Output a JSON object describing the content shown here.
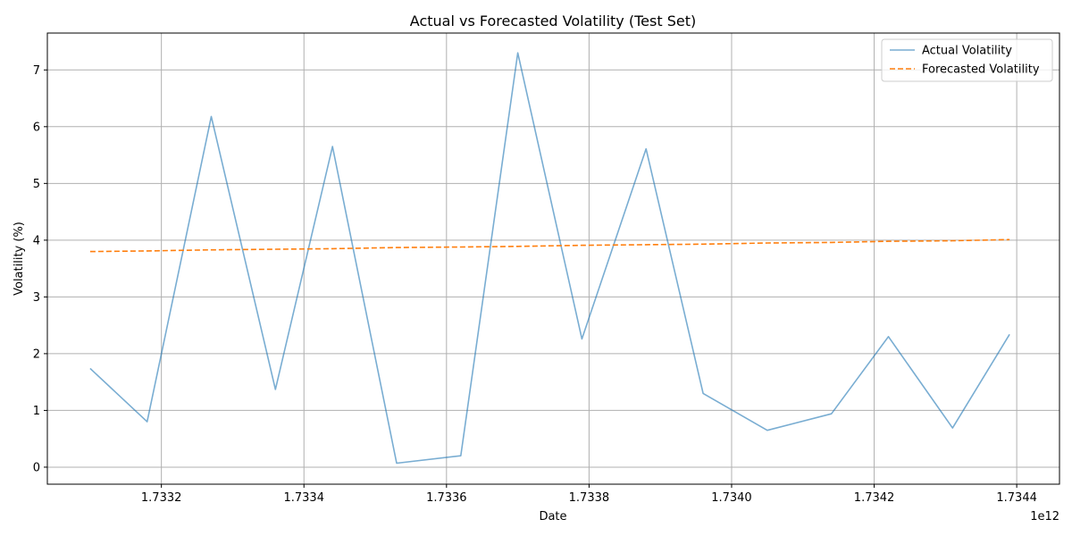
{
  "chart_data": {
    "type": "line",
    "title": "Actual vs Forecasted Volatility (Test Set)",
    "xlabel": "Date",
    "ylabel": "Volatility (%)",
    "x_offset_label": "1e12",
    "x_tick_values": [
      1.7332,
      1.7334,
      1.7336,
      1.7338,
      1.734,
      1.7342,
      1.7344
    ],
    "x_tick_labels": [
      "1.7332",
      "1.7334",
      "1.7336",
      "1.7338",
      "1.7340",
      "1.7342",
      "1.7344"
    ],
    "y_tick_values": [
      0,
      1,
      2,
      3,
      4,
      5,
      6,
      7
    ],
    "y_tick_labels": [
      "0",
      "1",
      "2",
      "3",
      "4",
      "5",
      "6",
      "7"
    ],
    "xlim": [
      1.73304,
      1.73446
    ],
    "ylim": [
      -0.3,
      7.65
    ],
    "grid": true,
    "legend_position": "top-right",
    "x": [
      1.7331,
      1.73318,
      1.73327,
      1.73336,
      1.73344,
      1.73353,
      1.73362,
      1.7337,
      1.73379,
      1.73388,
      1.73396,
      1.73405,
      1.73414,
      1.73422,
      1.73431,
      1.73439
    ],
    "series": [
      {
        "name": "Actual Volatility",
        "color": "#1f77b4",
        "style": "solid",
        "opacity": 0.6,
        "values": [
          1.74,
          0.8,
          6.18,
          1.37,
          5.65,
          0.07,
          0.2,
          7.3,
          2.26,
          5.61,
          1.3,
          0.65,
          0.94,
          2.3,
          0.69,
          2.34
        ]
      },
      {
        "name": "Forecasted Volatility",
        "color": "#ff7f0e",
        "style": "dashed",
        "opacity": 1,
        "values": [
          3.8,
          3.81,
          3.83,
          3.84,
          3.85,
          3.87,
          3.88,
          3.89,
          3.91,
          3.92,
          3.93,
          3.95,
          3.96,
          3.98,
          3.99,
          4.01
        ]
      }
    ]
  }
}
